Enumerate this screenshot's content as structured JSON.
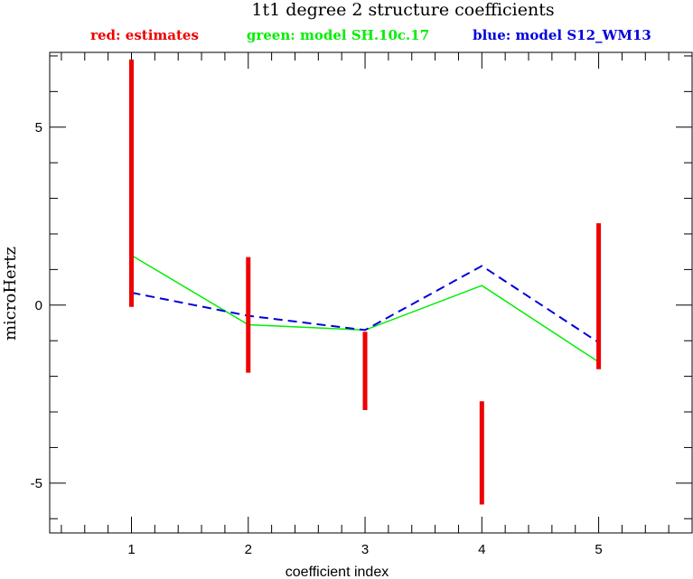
{
  "chart_data": {
    "type": "line",
    "title": "1t1 degree 2 structure coefficients",
    "xlabel": "coefficient index",
    "ylabel": "microHertz",
    "xlim": [
      0.3,
      5.8
    ],
    "ylim": [
      -6.4,
      7.1
    ],
    "x_ticks": [
      1,
      2,
      3,
      4,
      5
    ],
    "y_ticks": [
      -5,
      0,
      5
    ],
    "legend": [
      {
        "text": "red: estimates",
        "color": "#ee0000"
      },
      {
        "text": "green: model SH.10c.17",
        "color": "#00ee00"
      },
      {
        "text": "blue: model S12_WM13",
        "color": "#0000dd"
      }
    ],
    "estimates": [
      {
        "x": 1,
        "low": -0.05,
        "high": 6.9
      },
      {
        "x": 2,
        "low": -1.9,
        "high": 1.35
      },
      {
        "x": 3,
        "low": -2.95,
        "high": -0.75
      },
      {
        "x": 4,
        "low": -5.6,
        "high": -2.7
      },
      {
        "x": 5,
        "low": -1.8,
        "high": 2.3
      }
    ],
    "series": [
      {
        "name": "model SH.10c.17",
        "color": "#00ee00",
        "dash": false,
        "x": [
          1,
          2,
          3,
          4,
          5
        ],
        "y": [
          1.4,
          -0.55,
          -0.7,
          0.55,
          -1.6
        ]
      },
      {
        "name": "model S12_WM13",
        "color": "#0000dd",
        "dash": true,
        "x": [
          1,
          2,
          3,
          4,
          5
        ],
        "y": [
          0.35,
          -0.3,
          -0.7,
          1.1,
          -1.05
        ]
      }
    ]
  }
}
